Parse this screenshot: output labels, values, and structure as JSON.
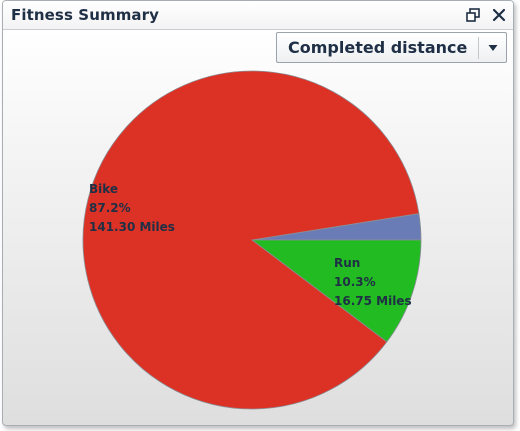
{
  "window": {
    "title": "Fitness Summary",
    "restore_icon": "restore-window-icon",
    "close_icon": "close-icon"
  },
  "dropdown": {
    "selected": "Completed distance",
    "arrow_icon": "caret-down-icon"
  },
  "chart_data": {
    "type": "pie",
    "title": "",
    "unit": "Miles",
    "slices": [
      {
        "name": "Bike",
        "percent_label": "87.2%",
        "value_label": "141.30 Miles",
        "percent": 87.2,
        "value": 141.3,
        "color": "#dc3125"
      },
      {
        "name": "",
        "percent_label": "",
        "value_label": "",
        "percent": 2.5,
        "value": 4.05,
        "color": "#6a7cb5"
      },
      {
        "name": "Run",
        "percent_label": "10.3%",
        "value_label": "16.75 Miles",
        "percent": 10.3,
        "value": 16.75,
        "color": "#22bb22"
      }
    ]
  }
}
